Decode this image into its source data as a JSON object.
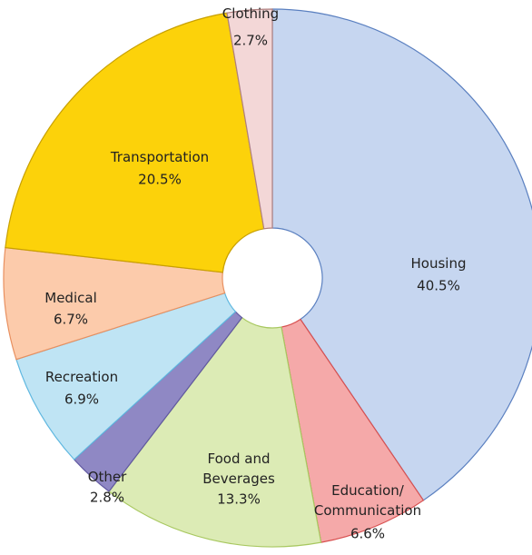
{
  "chart_data": {
    "type": "donut",
    "categories": [
      "Housing",
      "Education/Communication",
      "Food and Beverages",
      "Other",
      "Recreation",
      "Medical",
      "Transportation",
      "Clothing"
    ],
    "values": [
      40.5,
      6.6,
      13.3,
      2.8,
      6.9,
      6.7,
      20.5,
      2.7
    ],
    "value_labels": [
      "40.5%",
      "6.6%",
      "13.3%",
      "2.8%",
      "6.9%",
      "6.7%",
      "20.5%",
      "2.7%"
    ],
    "colors": [
      "#c6d6f0",
      "#f5a9a9",
      "#dcebb5",
      "#8f88c4",
      "#bfe4f4",
      "#fccbab",
      "#fcd20a",
      "#f3d7d7"
    ],
    "edge_colors": [
      "#5b80c0",
      "#d85050",
      "#a8c860",
      "#6058a0",
      "#60b8e0",
      "#e89060",
      "#c8a000",
      "#b08080"
    ]
  }
}
